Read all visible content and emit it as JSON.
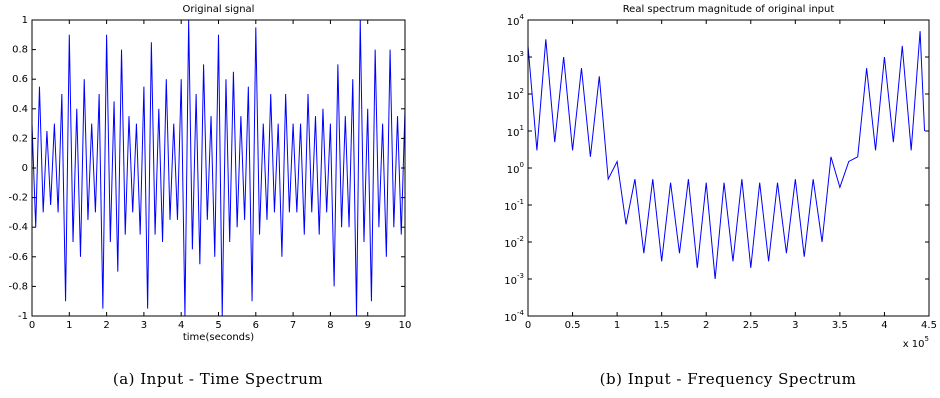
{
  "chart_data": [
    {
      "type": "line",
      "title": "Original signal",
      "x_label": "time(seconds)",
      "color": "#0000ff",
      "xlim": [
        0,
        10
      ],
      "xticks": [
        0,
        1,
        2,
        3,
        4,
        5,
        6,
        7,
        8,
        9,
        10
      ],
      "ylim": [
        -1,
        1
      ],
      "yticks": [
        -1,
        -0.8,
        -0.6,
        -0.4,
        -0.2,
        0,
        0.2,
        0.4,
        0.6,
        0.8,
        1
      ],
      "x": [
        0,
        0.1,
        0.2,
        0.3,
        0.4,
        0.5,
        0.6,
        0.7,
        0.8,
        0.9,
        1,
        1.1,
        1.2,
        1.3,
        1.4,
        1.5,
        1.6,
        1.7,
        1.8,
        1.9,
        2,
        2.1,
        2.2,
        2.3,
        2.4,
        2.5,
        2.6,
        2.7,
        2.8,
        2.9,
        3,
        3.1,
        3.2,
        3.3,
        3.4,
        3.5,
        3.6,
        3.7,
        3.8,
        3.9,
        4,
        4.1,
        4.2,
        4.3,
        4.4,
        4.5,
        4.6,
        4.7,
        4.8,
        4.9,
        5,
        5.1,
        5.2,
        5.3,
        5.4,
        5.5,
        5.6,
        5.7,
        5.8,
        5.9,
        6,
        6.1,
        6.2,
        6.3,
        6.4,
        6.5,
        6.6,
        6.7,
        6.8,
        6.9,
        7,
        7.1,
        7.2,
        7.3,
        7.4,
        7.5,
        7.6,
        7.7,
        7.8,
        7.9,
        8,
        8.1,
        8.2,
        8.3,
        8.4,
        8.5,
        8.6,
        8.7,
        8.8,
        8.9,
        9,
        9.1,
        9.2,
        9.3,
        9.4,
        9.5,
        9.6,
        9.7,
        9.8,
        9.9,
        10
      ],
      "values": [
        0.3,
        -0.4,
        0.55,
        -0.3,
        0.25,
        -0.25,
        0.3,
        -0.3,
        0.5,
        -0.9,
        0.9,
        -0.5,
        0.4,
        -0.6,
        0.6,
        -0.35,
        0.3,
        -0.3,
        0.5,
        -0.95,
        0.9,
        -0.5,
        0.45,
        -0.7,
        0.8,
        -0.45,
        0.35,
        -0.3,
        0.3,
        -0.45,
        0.55,
        -0.95,
        0.85,
        -0.45,
        0.4,
        -0.5,
        0.6,
        -0.35,
        0.3,
        -0.35,
        0.6,
        -1,
        1,
        -0.55,
        0.5,
        -0.65,
        0.7,
        -0.35,
        0.35,
        -0.6,
        0.9,
        -1,
        0.6,
        -0.5,
        0.65,
        -0.4,
        0.35,
        -0.35,
        0.55,
        -0.9,
        0.95,
        -0.45,
        0.3,
        -0.35,
        0.5,
        -0.3,
        0.3,
        -0.6,
        0.5,
        -0.3,
        0.3,
        -0.3,
        0.3,
        -0.45,
        0.5,
        -0.3,
        0.35,
        -0.45,
        0.4,
        -0.3,
        0.3,
        -0.8,
        0.7,
        -0.4,
        0.35,
        -0.4,
        0.6,
        -1,
        1,
        -0.5,
        0.4,
        -0.9,
        0.8,
        -0.4,
        0.3,
        -0.6,
        0.8,
        -0.4,
        0.35,
        -0.45,
        0.4
      ]
    },
    {
      "type": "line",
      "title": "Real spectrum magnitude of original input",
      "color": "#0000ff",
      "yscale": "log",
      "x_multiplier": "x 10^5",
      "xlim": [
        0,
        450000
      ],
      "xticks": [
        0,
        {
          "value": 50000,
          "label": "0.5"
        },
        {
          "value": 100000,
          "label": "1"
        },
        {
          "value": 150000,
          "label": "1.5"
        },
        {
          "value": 200000,
          "label": "2"
        },
        {
          "value": 250000,
          "label": "2.5"
        },
        {
          "value": 300000,
          "label": "3"
        },
        {
          "value": 350000,
          "label": "3.5"
        },
        {
          "value": 400000,
          "label": "4"
        },
        {
          "value": 450000,
          "label": "4.5"
        }
      ],
      "ylim": [
        0.0001,
        10000
      ],
      "yticks": [
        {
          "value": 0.0001,
          "label": "10^-4"
        },
        {
          "value": 0.001,
          "label": "10^-3"
        },
        {
          "value": 0.01,
          "label": "10^-2"
        },
        {
          "value": 0.1,
          "label": "10^-1"
        },
        {
          "value": 1,
          "label": "10^0"
        },
        {
          "value": 10,
          "label": "10^1"
        },
        {
          "value": 100,
          "label": "10^2"
        },
        {
          "value": 1000,
          "label": "10^3"
        },
        {
          "value": 10000,
          "label": "10^4"
        }
      ],
      "x": [
        0,
        10000,
        20000,
        30000,
        40000,
        50000,
        60000,
        70000,
        80000,
        90000,
        100000,
        110000,
        120000,
        130000,
        140000,
        150000,
        160000,
        170000,
        180000,
        190000,
        200000,
        210000,
        220000,
        230000,
        240000,
        250000,
        260000,
        270000,
        280000,
        290000,
        300000,
        310000,
        320000,
        330000,
        340000,
        350000,
        360000,
        370000,
        380000,
        390000,
        400000,
        410000,
        420000,
        430000,
        440000,
        445000
      ],
      "values": [
        2000,
        3,
        3000,
        5,
        1000,
        3,
        500,
        2,
        300,
        0.5,
        1.5,
        0.03,
        0.5,
        0.005,
        0.5,
        0.003,
        0.4,
        0.005,
        0.5,
        0.002,
        0.4,
        0.001,
        0.4,
        0.003,
        0.5,
        0.002,
        0.4,
        0.003,
        0.4,
        0.005,
        0.5,
        0.004,
        0.5,
        0.01,
        2,
        0.3,
        1.5,
        2,
        500,
        3,
        1000,
        5,
        2000,
        3,
        5000,
        10
      ]
    }
  ],
  "captions": [
    "(a) Input - Time Spectrum",
    "(b) Input - Frequency Spectrum"
  ]
}
